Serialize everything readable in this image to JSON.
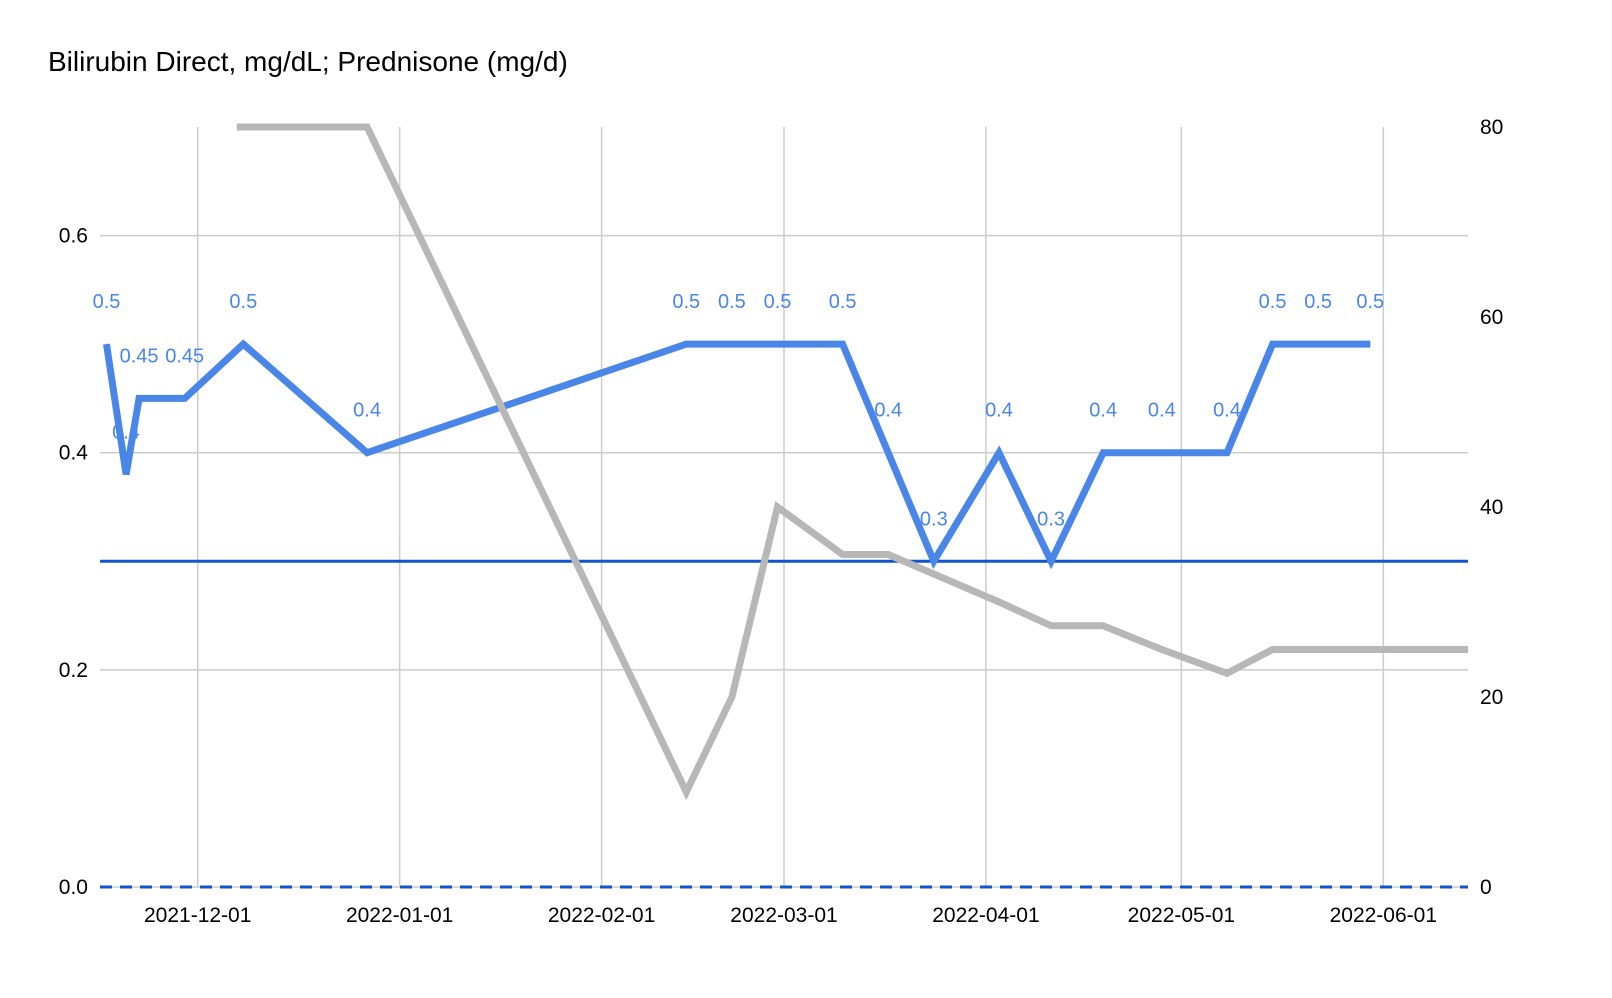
{
  "chart_data": {
    "type": "line",
    "title": "Bilirubin Direct, mg/dL; Prednisone (mg/d)",
    "x_ticks": [
      "2021-12-01",
      "2022-01-01",
      "2022-02-01",
      "2022-03-01",
      "2022-04-01",
      "2022-05-01",
      "2022-06-01"
    ],
    "xlim": [
      "2021-11-16",
      "2022-06-14"
    ],
    "y_left": {
      "lim": [
        0,
        0.7
      ],
      "ticks": [
        "0.0",
        "0.2",
        "0.4",
        "0.6"
      ]
    },
    "y_right": {
      "lim": [
        0,
        80
      ],
      "ticks": [
        "0",
        "20",
        "40",
        "60",
        "80"
      ]
    },
    "grid": true,
    "legend": "none",
    "series": [
      {
        "axis": "left",
        "color": "#4a86e8",
        "points": [
          {
            "x": "2021-11-17",
            "y": 0.5,
            "label": "0.5"
          },
          {
            "x": "2021-11-20",
            "y": 0.38,
            "label": "0.4"
          },
          {
            "x": "2021-11-22",
            "y": 0.45,
            "label": "0.45"
          },
          {
            "x": "2021-11-29",
            "y": 0.45,
            "label": "0.45"
          },
          {
            "x": "2021-12-08",
            "y": 0.5,
            "label": "0.5"
          },
          {
            "x": "2021-12-27",
            "y": 0.4,
            "label": "0.4"
          },
          {
            "x": "2022-02-14",
            "y": 0.5,
            "label": "0.5"
          },
          {
            "x": "2022-02-21",
            "y": 0.5,
            "label": "0.5"
          },
          {
            "x": "2022-02-28",
            "y": 0.5,
            "label": "0.5"
          },
          {
            "x": "2022-03-10",
            "y": 0.5,
            "label": "0.5"
          },
          {
            "x": "2022-03-17",
            "y": 0.4,
            "label": "0.4"
          },
          {
            "x": "2022-03-24",
            "y": 0.3,
            "label": "0.3"
          },
          {
            "x": "2022-04-03",
            "y": 0.4,
            "label": "0.4"
          },
          {
            "x": "2022-04-11",
            "y": 0.3,
            "label": "0.3"
          },
          {
            "x": "2022-04-19",
            "y": 0.4,
            "label": "0.4"
          },
          {
            "x": "2022-04-28",
            "y": 0.4,
            "label": "0.4"
          },
          {
            "x": "2022-05-08",
            "y": 0.4,
            "label": "0.4"
          },
          {
            "x": "2022-05-15",
            "y": 0.5,
            "label": "0.5"
          },
          {
            "x": "2022-05-22",
            "y": 0.5,
            "label": "0.5"
          },
          {
            "x": "2022-05-30",
            "y": 0.5,
            "label": "0.5"
          }
        ]
      },
      {
        "axis": "right",
        "color": "#b7b7b7",
        "points": [
          {
            "x": "2021-12-07",
            "y": 80
          },
          {
            "x": "2021-12-27",
            "y": 80
          },
          {
            "x": "2022-02-14",
            "y": 10
          },
          {
            "x": "2022-02-21",
            "y": 20
          },
          {
            "x": "2022-02-28",
            "y": 40
          },
          {
            "x": "2022-03-10",
            "y": 35
          },
          {
            "x": "2022-03-17",
            "y": 35
          },
          {
            "x": "2022-04-03",
            "y": 30
          },
          {
            "x": "2022-04-11",
            "y": 27.5
          },
          {
            "x": "2022-04-19",
            "y": 27.5
          },
          {
            "x": "2022-04-28",
            "y": 25
          },
          {
            "x": "2022-05-08",
            "y": 22.5
          },
          {
            "x": "2022-05-15",
            "y": 25
          },
          {
            "x": "2022-06-14",
            "y": 25
          }
        ]
      }
    ],
    "reference_lines": [
      {
        "axis": "left",
        "y": 0.3,
        "color": "#1155cc",
        "style": "solid"
      },
      {
        "axis": "left",
        "y": 0.0,
        "color": "#1155cc",
        "style": "dashed"
      }
    ]
  }
}
